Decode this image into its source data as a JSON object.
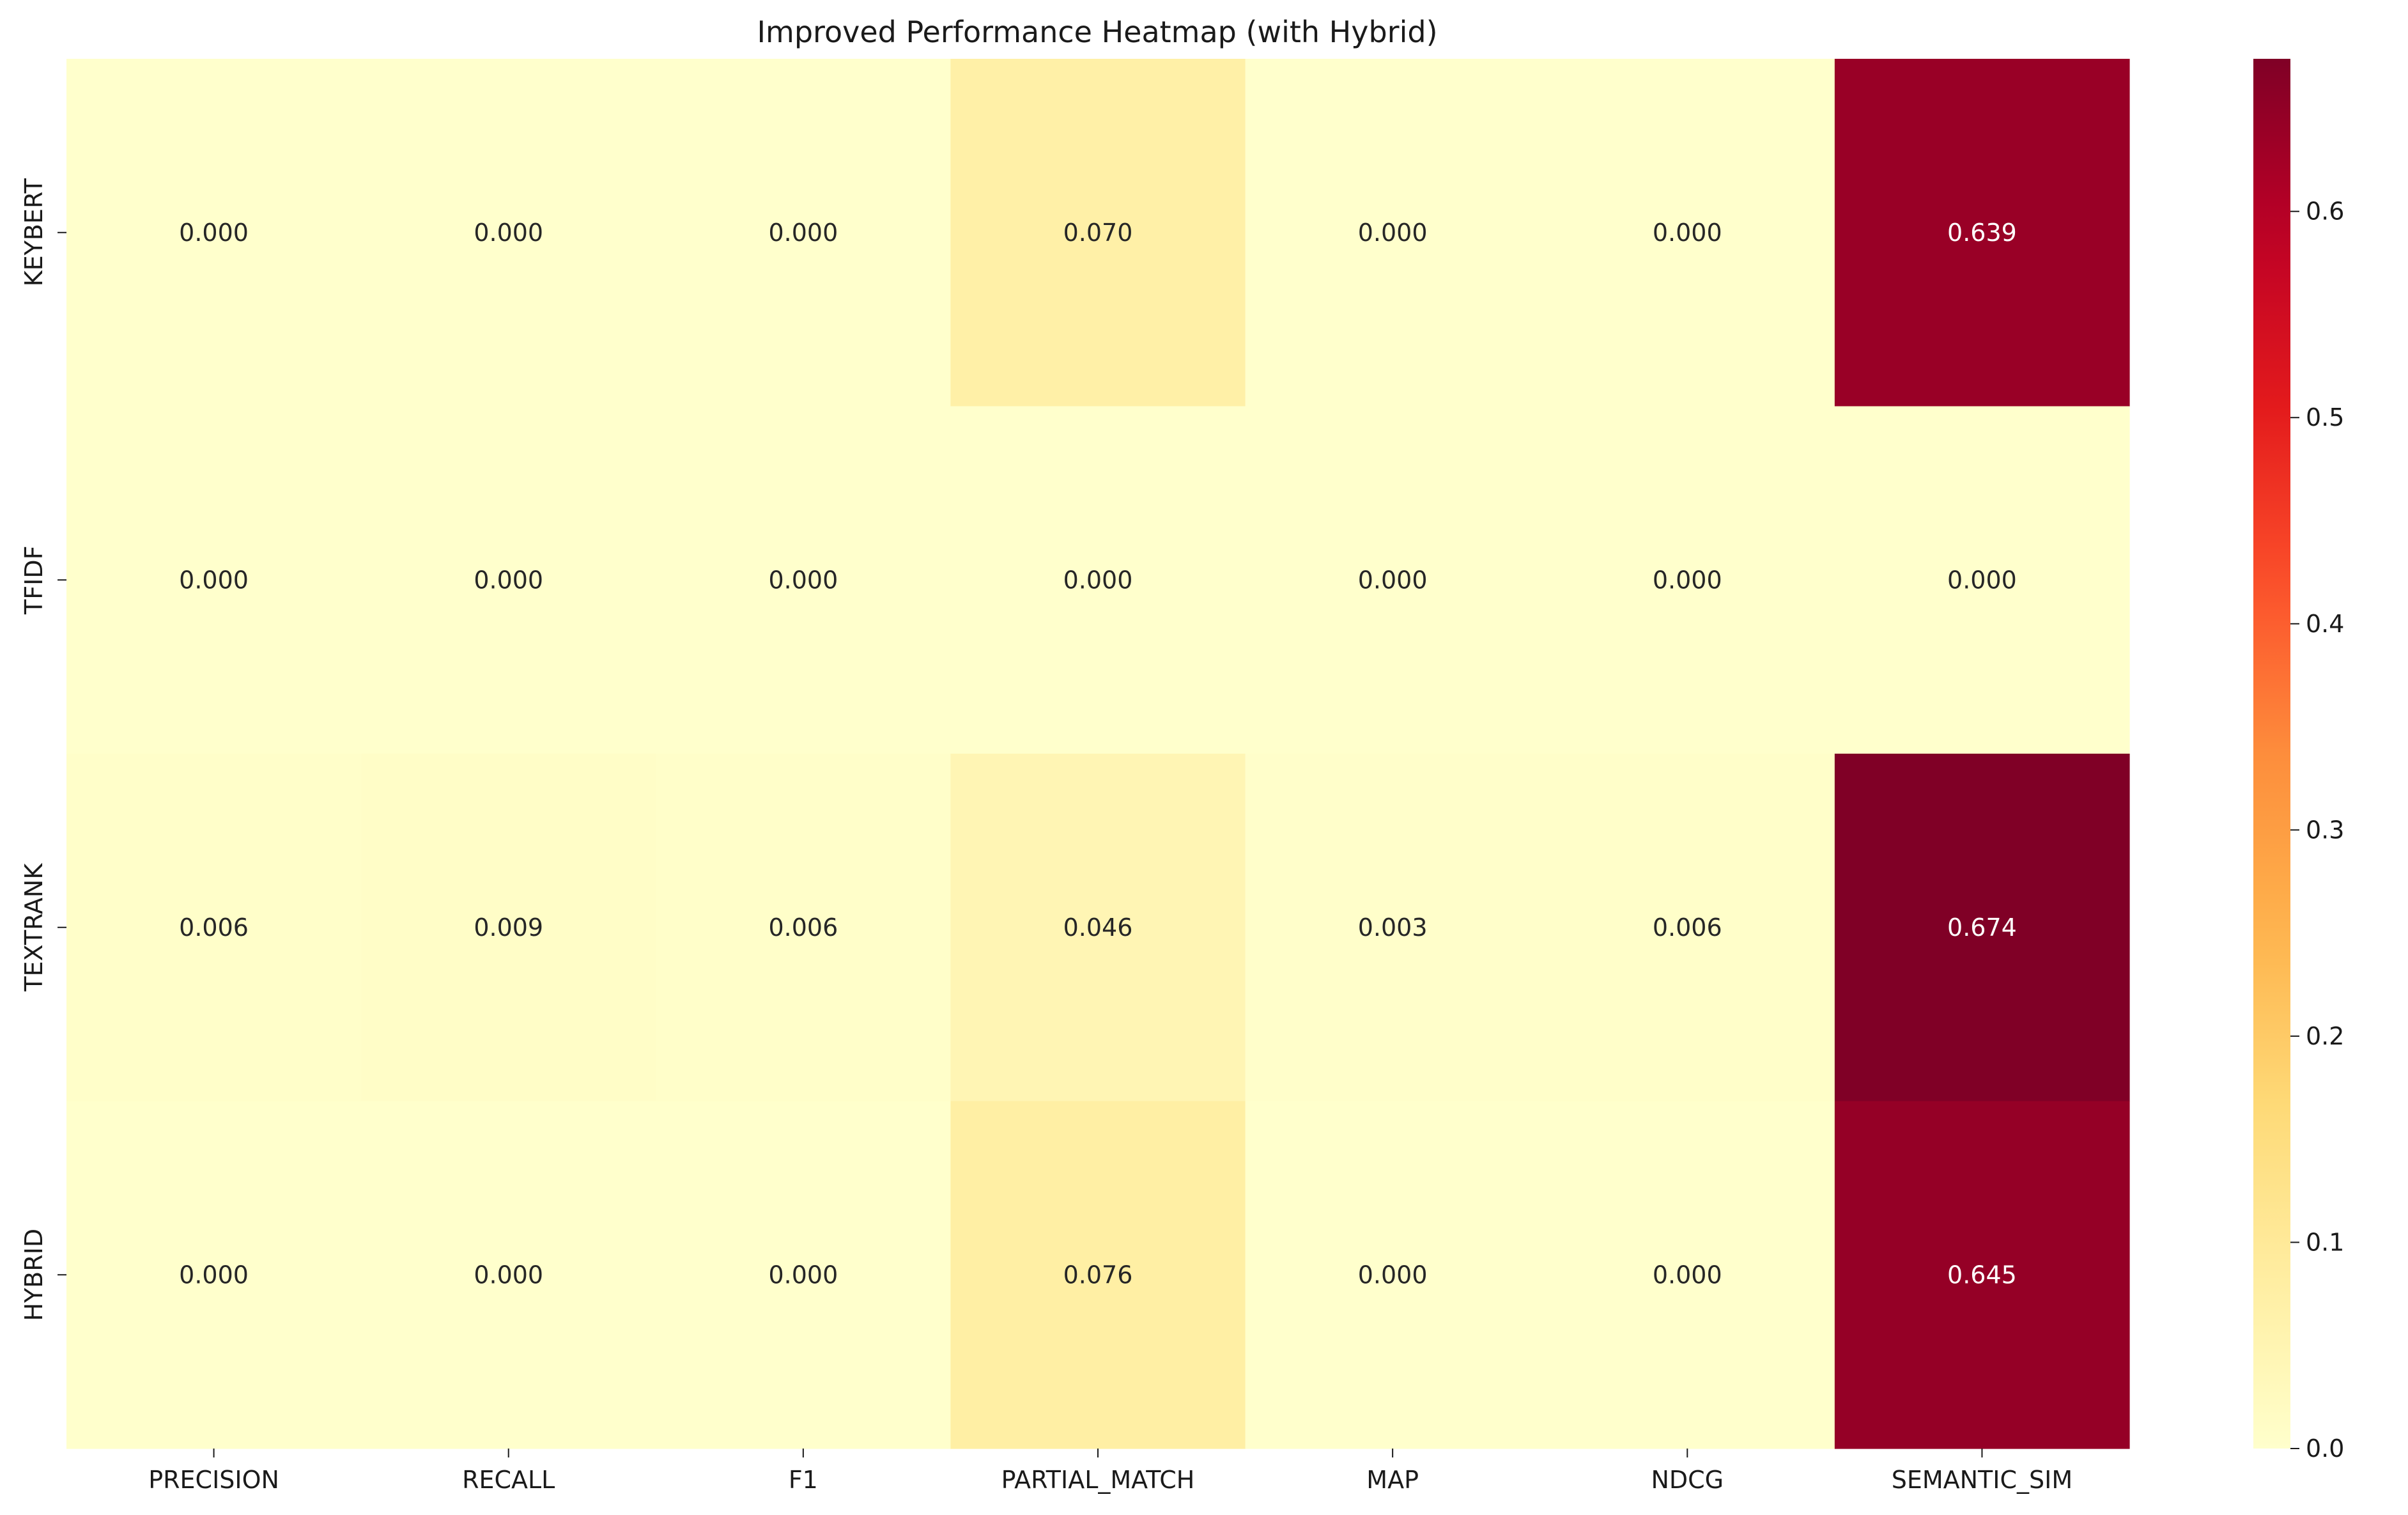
{
  "chart_data": {
    "type": "heatmap",
    "title": "Improved Performance Heatmap (with Hybrid)",
    "xlabel": "",
    "ylabel": "",
    "columns": [
      "PRECISION",
      "RECALL",
      "F1",
      "PARTIAL_MATCH",
      "MAP",
      "NDCG",
      "SEMANTIC_SIM"
    ],
    "rows": [
      "KEYBERT",
      "TFIDF",
      "TEXTRANK",
      "HYBRID"
    ],
    "values": [
      [
        0.0,
        0.0,
        0.0,
        0.07,
        0.0,
        0.0,
        0.639
      ],
      [
        0.0,
        0.0,
        0.0,
        0.0,
        0.0,
        0.0,
        0.0
      ],
      [
        0.006,
        0.009,
        0.006,
        0.046,
        0.003,
        0.006,
        0.674
      ],
      [
        0.0,
        0.0,
        0.0,
        0.076,
        0.0,
        0.0,
        0.645
      ]
    ],
    "cell_labels": [
      [
        "0.000",
        "0.000",
        "0.000",
        "0.070",
        "0.000",
        "0.000",
        "0.639"
      ],
      [
        "0.000",
        "0.000",
        "0.000",
        "0.000",
        "0.000",
        "0.000",
        "0.000"
      ],
      [
        "0.006",
        "0.009",
        "0.006",
        "0.046",
        "0.003",
        "0.006",
        "0.674"
      ],
      [
        "0.000",
        "0.000",
        "0.000",
        "0.076",
        "0.000",
        "0.000",
        "0.645"
      ]
    ],
    "colorbar": {
      "colormap": "YlOrRd",
      "range": [
        0,
        0.674
      ],
      "ticks": [
        0.0,
        0.1,
        0.2,
        0.3,
        0.4,
        0.5,
        0.6
      ],
      "tick_labels": [
        "0.0",
        "0.1",
        "0.2",
        "0.3",
        "0.4",
        "0.5",
        "0.6"
      ]
    },
    "grid": false,
    "legend": "colorbar-right"
  }
}
